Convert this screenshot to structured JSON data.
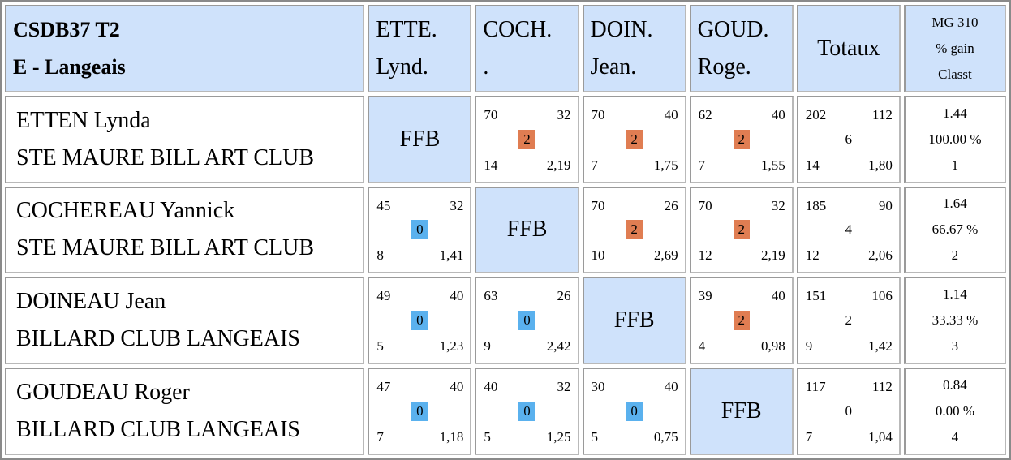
{
  "title": {
    "line1": "CSDB37 T2",
    "line2": "E - Langeais"
  },
  "columns": [
    {
      "line1": "ETTE.",
      "line2": "Lynd."
    },
    {
      "line1": "COCH.",
      "line2": "."
    },
    {
      "line1": "DOIN.",
      "line2": "Jean."
    },
    {
      "line1": "GOUD.",
      "line2": "Roge."
    }
  ],
  "totals_header": "Totaux",
  "mg_header": {
    "line1": "MG 310",
    "line2": "% gain",
    "line3": "Classt"
  },
  "self_label": "FFB",
  "colors": {
    "header_bg": "#cfe2fb",
    "win_badge": "#e07d52",
    "loss_badge": "#5ab1ee"
  },
  "rows": [
    {
      "name": "ETTEN Lynda",
      "club": "STE MAURE BILL ART CLUB",
      "cells": [
        null,
        {
          "points": "70",
          "distance": "32",
          "result": "2",
          "innings": "14",
          "average": "2,19"
        },
        {
          "points": "70",
          "distance": "40",
          "result": "2",
          "innings": "7",
          "average": "1,75"
        },
        {
          "points": "62",
          "distance": "40",
          "result": "2",
          "innings": "7",
          "average": "1,55"
        }
      ],
      "total": {
        "points": "202",
        "distance": "112",
        "result": "6",
        "innings": "14",
        "average": "1,80"
      },
      "mg": {
        "value": "1.44",
        "gain": "100.00 %",
        "rank": "1"
      }
    },
    {
      "name": "COCHEREAU Yannick",
      "club": "STE MAURE BILL ART CLUB",
      "cells": [
        {
          "points": "45",
          "distance": "32",
          "result": "0",
          "innings": "8",
          "average": "1,41"
        },
        null,
        {
          "points": "70",
          "distance": "26",
          "result": "2",
          "innings": "10",
          "average": "2,69"
        },
        {
          "points": "70",
          "distance": "32",
          "result": "2",
          "innings": "12",
          "average": "2,19"
        }
      ],
      "total": {
        "points": "185",
        "distance": "90",
        "result": "4",
        "innings": "12",
        "average": "2,06"
      },
      "mg": {
        "value": "1.64",
        "gain": "66.67 %",
        "rank": "2"
      }
    },
    {
      "name": "DOINEAU Jean",
      "club": "BILLARD CLUB LANGEAIS",
      "cells": [
        {
          "points": "49",
          "distance": "40",
          "result": "0",
          "innings": "5",
          "average": "1,23"
        },
        {
          "points": "63",
          "distance": "26",
          "result": "0",
          "innings": "9",
          "average": "2,42"
        },
        null,
        {
          "points": "39",
          "distance": "40",
          "result": "2",
          "innings": "4",
          "average": "0,98"
        }
      ],
      "total": {
        "points": "151",
        "distance": "106",
        "result": "2",
        "innings": "9",
        "average": "1,42"
      },
      "mg": {
        "value": "1.14",
        "gain": "33.33 %",
        "rank": "3"
      }
    },
    {
      "name": "GOUDEAU Roger",
      "club": "BILLARD CLUB LANGEAIS",
      "cells": [
        {
          "points": "47",
          "distance": "40",
          "result": "0",
          "innings": "7",
          "average": "1,18"
        },
        {
          "points": "40",
          "distance": "32",
          "result": "0",
          "innings": "5",
          "average": "1,25"
        },
        {
          "points": "30",
          "distance": "40",
          "result": "0",
          "innings": "5",
          "average": "0,75"
        },
        null
      ],
      "total": {
        "points": "117",
        "distance": "112",
        "result": "0",
        "innings": "7",
        "average": "1,04"
      },
      "mg": {
        "value": "0.84",
        "gain": "0.00 %",
        "rank": "4"
      }
    }
  ]
}
